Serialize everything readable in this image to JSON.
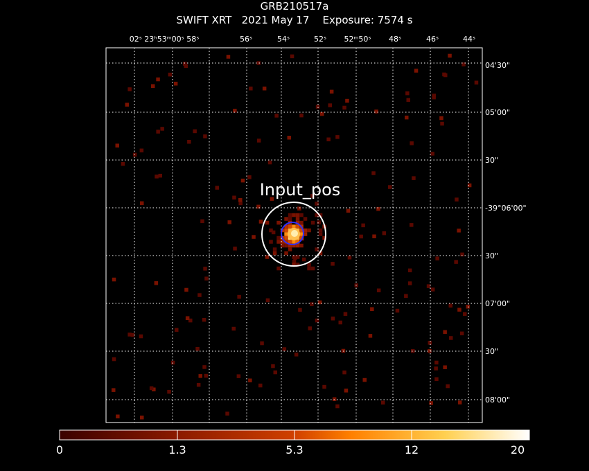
{
  "header": {
    "target": "GRB210517a",
    "line2": "SWIFT XRT   2021 May 17    Exposure: 7574 s"
  },
  "colors": {
    "background": "#000000",
    "frame": "#ffffff",
    "grid": "#ffffff",
    "source_circle": "#ffffff",
    "psf_circle": "#3030ff",
    "colormap": [
      "#3a0000",
      "#8b1a00",
      "#d04000",
      "#ff8000",
      "#ffc040",
      "#ffffe0"
    ]
  },
  "chart_data": {
    "type": "heatmap",
    "title": "GRB210517a",
    "subtitle": "SWIFT XRT   2021 May 17    Exposure: 7574 s",
    "ra_tick_labels": [
      "02ˢ 23ʰ53ᵐ00ˢ 58ˢ",
      "56ˢ",
      "54ˢ",
      "52ˢ",
      "52ᵐ50ˢ",
      "48ˢ",
      "46ˢ",
      "44ˢ"
    ],
    "dec_tick_labels": [
      "04'30\"",
      "05'00\"",
      "30\"",
      "-39°06'00\"",
      "30\"",
      "07'00\"",
      "30\"",
      "08'00\""
    ],
    "grid": true,
    "annotation": "Input_pos",
    "colorbar": {
      "label_values": [
        "0",
        "1.3",
        "5.3",
        "12",
        "20"
      ],
      "range": [
        0,
        20
      ],
      "scale": "nonlinear"
    },
    "source": {
      "label": "Input_pos",
      "peak_counts": 20
    }
  }
}
